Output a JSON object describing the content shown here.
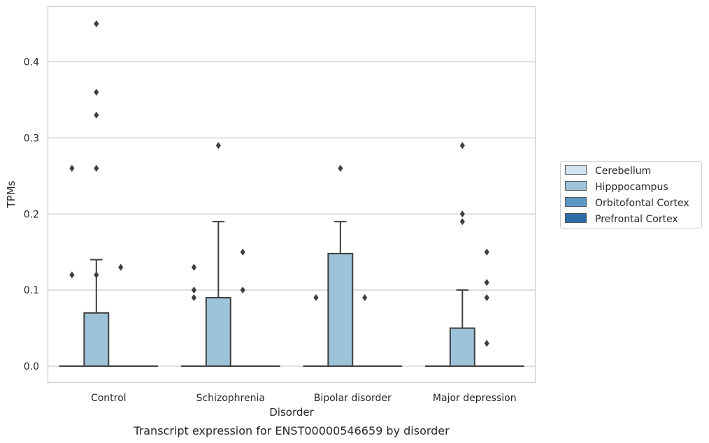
{
  "chart_data": {
    "type": "box",
    "title": "",
    "caption": "Transcript expression for ENST00000546659 by disorder",
    "xlabel": "Disorder",
    "ylabel": "TPMs",
    "ylim": [
      -0.022,
      0.473
    ],
    "yticks": [
      0.0,
      0.1,
      0.2,
      0.3,
      0.4
    ],
    "ytick_labels": [
      "0.0",
      "0.1",
      "0.2",
      "0.3",
      "0.4"
    ],
    "grid": "horizontal",
    "legend_position": "right",
    "categories": [
      "Control",
      "Schizophrenia",
      "Bipolar disorder",
      "Major depression"
    ],
    "series": [
      {
        "name": "Cerebellum",
        "color": "#d1e3f1",
        "boxes": [
          {
            "q1": 0,
            "median": 0,
            "q3": 0,
            "whisker_low": 0,
            "whisker_high": 0,
            "outliers": []
          },
          {
            "q1": 0,
            "median": 0,
            "q3": 0,
            "whisker_low": 0,
            "whisker_high": 0,
            "outliers": []
          },
          {
            "q1": 0,
            "median": 0,
            "q3": 0,
            "whisker_low": 0,
            "whisker_high": 0,
            "outliers": []
          },
          {
            "q1": 0,
            "median": 0,
            "q3": 0,
            "whisker_low": 0,
            "whisker_high": 0,
            "outliers": []
          }
        ]
      },
      {
        "name": "Hipppocampus",
        "color": "#9cc3da",
        "boxes": [
          {
            "q1": 0,
            "median": 0,
            "q3": 0.07,
            "whisker_low": 0,
            "whisker_high": 0.14,
            "outliers": [
              0.45,
              0.36,
              0.33,
              0.26,
              0.12
            ]
          },
          {
            "q1": 0,
            "median": 0,
            "q3": 0.09,
            "whisker_low": 0,
            "whisker_high": 0.19,
            "outliers": [
              0.29
            ]
          },
          {
            "q1": 0,
            "median": 0,
            "q3": 0.148,
            "whisker_low": 0,
            "whisker_high": 0.19,
            "outliers": [
              0.26
            ]
          },
          {
            "q1": 0,
            "median": 0,
            "q3": 0.05,
            "whisker_low": 0,
            "whisker_high": 0.1,
            "outliers": [
              0.29,
              0.2,
              0.19
            ]
          }
        ]
      },
      {
        "name": "Orbitofontal Cortex",
        "color": "#5a98c5",
        "boxes": [
          {
            "q1": 0,
            "median": 0,
            "q3": 0,
            "whisker_low": 0,
            "whisker_high": 0,
            "outliers": [
              0.13
            ]
          },
          {
            "q1": 0,
            "median": 0,
            "q3": 0,
            "whisker_low": 0,
            "whisker_high": 0,
            "outliers": [
              0.15,
              0.1
            ]
          },
          {
            "q1": 0,
            "median": 0,
            "q3": 0,
            "whisker_low": 0,
            "whisker_high": 0,
            "outliers": [
              0.09
            ]
          },
          {
            "q1": 0,
            "median": 0,
            "q3": 0,
            "whisker_low": 0,
            "whisker_high": 0,
            "outliers": [
              0.15,
              0.11,
              0.09
            ]
          }
        ]
      },
      {
        "name": "Prefrontal Cortex",
        "color": "#2c6ba6",
        "boxes": [
          {
            "q1": 0,
            "median": 0,
            "q3": 0,
            "whisker_low": 0,
            "whisker_high": 0,
            "outliers": []
          },
          {
            "q1": 0,
            "median": 0,
            "q3": 0,
            "whisker_low": 0,
            "whisker_high": 0,
            "outliers": []
          },
          {
            "q1": 0,
            "median": 0,
            "q3": 0,
            "whisker_low": 0,
            "whisker_high": 0,
            "outliers": []
          },
          {
            "q1": 0,
            "median": 0,
            "q3": 0,
            "whisker_low": 0,
            "whisker_high": 0,
            "outliers": []
          }
        ]
      }
    ],
    "extra_outliers": [
      {
        "category": "Control",
        "series": "Cerebellum",
        "values": [
          0.26,
          0.12
        ]
      },
      {
        "category": "Schizophrenia",
        "series": "Cerebellum",
        "values": [
          0.13,
          0.1,
          0.09
        ]
      },
      {
        "category": "Bipolar disorder",
        "series": "Cerebellum",
        "values": [
          0.09
        ]
      },
      {
        "category": "Major depression",
        "series": "Orbitofontal Cortex",
        "values": [
          0.03
        ]
      }
    ],
    "colors": {
      "box_edge": "#3f3f3f",
      "grid": "#cccccc",
      "frame": "#cccccc",
      "outlier": "#3f3f3f"
    }
  }
}
